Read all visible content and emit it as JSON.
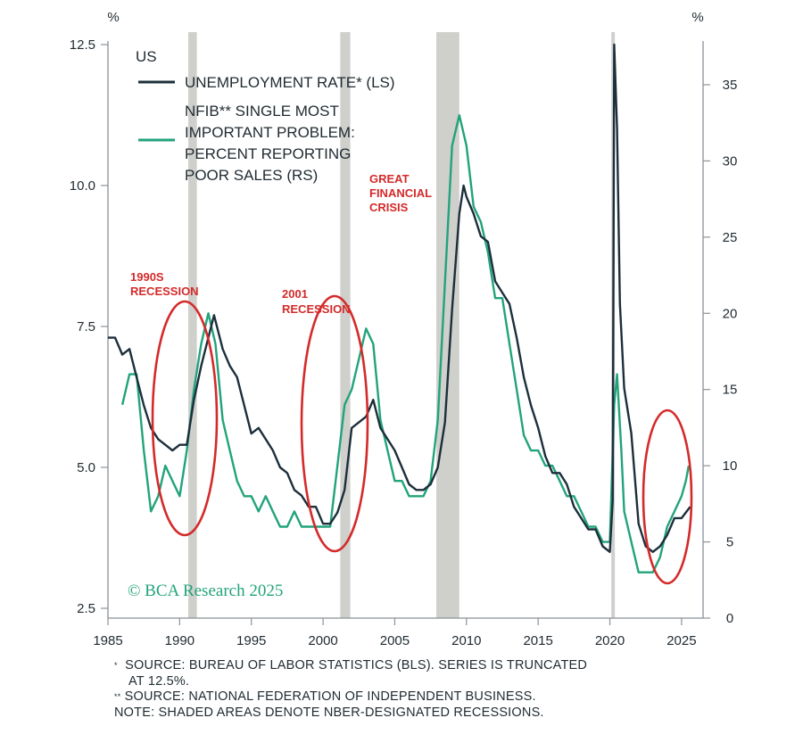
{
  "chart_data": {
    "type": "line",
    "region_label": "US",
    "left_unit": "%",
    "right_unit": "%",
    "xlim": [
      1985,
      2026.5
    ],
    "x_ticks": [
      1985,
      1990,
      1995,
      2000,
      2005,
      2010,
      2015,
      2020,
      2025
    ],
    "y_left": {
      "lim": [
        2.5,
        12.5
      ],
      "ticks": [
        "2.5",
        "5.0",
        "7.5",
        "10.0",
        "12.5"
      ]
    },
    "y_right": {
      "lim": [
        0,
        35
      ],
      "ticks": [
        "0",
        "5",
        "10",
        "15",
        "20",
        "25",
        "30",
        "35"
      ]
    },
    "series": [
      {
        "name": "UNEMPLOYMENT RATE* (LS)",
        "axis": "left",
        "color": "#1c2f3b",
        "points": [
          [
            1985.0,
            7.3
          ],
          [
            1985.5,
            7.3
          ],
          [
            1986.0,
            7.0
          ],
          [
            1986.5,
            7.1
          ],
          [
            1987.0,
            6.6
          ],
          [
            1987.5,
            6.1
          ],
          [
            1988.0,
            5.7
          ],
          [
            1988.5,
            5.5
          ],
          [
            1989.0,
            5.4
          ],
          [
            1989.5,
            5.3
          ],
          [
            1990.0,
            5.4
          ],
          [
            1990.5,
            5.4
          ],
          [
            1991.0,
            6.2
          ],
          [
            1991.5,
            6.8
          ],
          [
            1992.0,
            7.3
          ],
          [
            1992.4,
            7.7
          ],
          [
            1993.0,
            7.1
          ],
          [
            1993.5,
            6.8
          ],
          [
            1994.0,
            6.6
          ],
          [
            1994.5,
            6.1
          ],
          [
            1995.0,
            5.6
          ],
          [
            1995.5,
            5.7
          ],
          [
            1996.0,
            5.5
          ],
          [
            1996.5,
            5.3
          ],
          [
            1997.0,
            5.0
          ],
          [
            1997.5,
            4.9
          ],
          [
            1998.0,
            4.6
          ],
          [
            1998.5,
            4.5
          ],
          [
            1999.0,
            4.3
          ],
          [
            1999.5,
            4.3
          ],
          [
            2000.0,
            4.0
          ],
          [
            2000.5,
            4.0
          ],
          [
            2001.0,
            4.2
          ],
          [
            2001.5,
            4.6
          ],
          [
            2002.0,
            5.7
          ],
          [
            2002.5,
            5.8
          ],
          [
            2003.0,
            5.9
          ],
          [
            2003.5,
            6.2
          ],
          [
            2004.0,
            5.7
          ],
          [
            2004.5,
            5.5
          ],
          [
            2005.0,
            5.3
          ],
          [
            2005.5,
            5.0
          ],
          [
            2006.0,
            4.7
          ],
          [
            2006.5,
            4.6
          ],
          [
            2007.0,
            4.6
          ],
          [
            2007.5,
            4.7
          ],
          [
            2008.0,
            5.0
          ],
          [
            2008.5,
            5.8
          ],
          [
            2009.0,
            7.8
          ],
          [
            2009.5,
            9.5
          ],
          [
            2009.8,
            10.0
          ],
          [
            2010.0,
            9.8
          ],
          [
            2010.5,
            9.5
          ],
          [
            2011.0,
            9.1
          ],
          [
            2011.5,
            9.0
          ],
          [
            2012.0,
            8.3
          ],
          [
            2012.5,
            8.1
          ],
          [
            2013.0,
            7.9
          ],
          [
            2013.5,
            7.3
          ],
          [
            2014.0,
            6.6
          ],
          [
            2014.5,
            6.1
          ],
          [
            2015.0,
            5.7
          ],
          [
            2015.5,
            5.2
          ],
          [
            2016.0,
            4.9
          ],
          [
            2016.5,
            4.9
          ],
          [
            2017.0,
            4.7
          ],
          [
            2017.5,
            4.3
          ],
          [
            2018.0,
            4.1
          ],
          [
            2018.5,
            3.9
          ],
          [
            2019.0,
            3.9
          ],
          [
            2019.5,
            3.6
          ],
          [
            2020.0,
            3.5
          ],
          [
            2020.2,
            4.4
          ],
          [
            2020.3,
            12.5
          ],
          [
            2020.5,
            11.0
          ],
          [
            2020.7,
            7.9
          ],
          [
            2021.0,
            6.4
          ],
          [
            2021.5,
            5.6
          ],
          [
            2022.0,
            4.0
          ],
          [
            2022.5,
            3.6
          ],
          [
            2023.0,
            3.5
          ],
          [
            2023.5,
            3.6
          ],
          [
            2024.0,
            3.8
          ],
          [
            2024.5,
            4.1
          ],
          [
            2025.0,
            4.1
          ],
          [
            2025.3,
            4.2
          ],
          [
            2025.6,
            4.3
          ]
        ]
      },
      {
        "name": "NFIB** SINGLE MOST IMPORTANT PROBLEM: PERCENT REPORTING POOR SALES (RS)",
        "axis": "right",
        "color": "#22a37b",
        "points": [
          [
            1986.0,
            14
          ],
          [
            1986.5,
            16
          ],
          [
            1987.0,
            16
          ],
          [
            1987.5,
            11
          ],
          [
            1988.0,
            7
          ],
          [
            1988.5,
            8
          ],
          [
            1989.0,
            10
          ],
          [
            1989.5,
            9
          ],
          [
            1990.0,
            8
          ],
          [
            1990.5,
            11
          ],
          [
            1991.0,
            15
          ],
          [
            1991.5,
            18
          ],
          [
            1992.0,
            20
          ],
          [
            1992.5,
            18
          ],
          [
            1993.0,
            13
          ],
          [
            1993.5,
            11
          ],
          [
            1994.0,
            9
          ],
          [
            1994.5,
            8
          ],
          [
            1995.0,
            8
          ],
          [
            1995.5,
            7
          ],
          [
            1996.0,
            8
          ],
          [
            1996.5,
            7
          ],
          [
            1997.0,
            6
          ],
          [
            1997.5,
            6
          ],
          [
            1998.0,
            7
          ],
          [
            1998.5,
            6
          ],
          [
            1999.0,
            6
          ],
          [
            1999.5,
            6
          ],
          [
            2000.0,
            6
          ],
          [
            2000.5,
            6
          ],
          [
            2001.0,
            10
          ],
          [
            2001.5,
            14
          ],
          [
            2002.0,
            15
          ],
          [
            2002.5,
            17
          ],
          [
            2003.0,
            19
          ],
          [
            2003.5,
            18
          ],
          [
            2004.0,
            13
          ],
          [
            2004.5,
            11
          ],
          [
            2005.0,
            9
          ],
          [
            2005.5,
            9
          ],
          [
            2006.0,
            8
          ],
          [
            2006.5,
            8
          ],
          [
            2007.0,
            8
          ],
          [
            2007.5,
            9
          ],
          [
            2008.0,
            13
          ],
          [
            2008.5,
            22
          ],
          [
            2009.0,
            31
          ],
          [
            2009.5,
            33
          ],
          [
            2010.0,
            31
          ],
          [
            2010.5,
            27
          ],
          [
            2011.0,
            26
          ],
          [
            2011.5,
            24
          ],
          [
            2012.0,
            21
          ],
          [
            2012.5,
            21
          ],
          [
            2013.0,
            18
          ],
          [
            2013.5,
            15
          ],
          [
            2014.0,
            12
          ],
          [
            2014.5,
            11
          ],
          [
            2015.0,
            11
          ],
          [
            2015.5,
            10
          ],
          [
            2016.0,
            10
          ],
          [
            2016.5,
            9
          ],
          [
            2017.0,
            8
          ],
          [
            2017.5,
            8
          ],
          [
            2018.0,
            7
          ],
          [
            2018.5,
            6
          ],
          [
            2019.0,
            6
          ],
          [
            2019.5,
            5
          ],
          [
            2020.0,
            5
          ],
          [
            2020.3,
            14
          ],
          [
            2020.5,
            16
          ],
          [
            2020.8,
            11
          ],
          [
            2021.0,
            7
          ],
          [
            2021.5,
            5
          ],
          [
            2022.0,
            3
          ],
          [
            2022.5,
            3
          ],
          [
            2023.0,
            3
          ],
          [
            2023.5,
            4
          ],
          [
            2024.0,
            6
          ],
          [
            2024.5,
            7
          ],
          [
            2025.0,
            8
          ],
          [
            2025.3,
            9
          ],
          [
            2025.5,
            10
          ]
        ]
      }
    ],
    "recessions": [
      [
        1990.6,
        1991.2
      ],
      [
        2001.2,
        2001.9
      ],
      [
        2007.9,
        2009.5
      ],
      [
        2020.1,
        2020.35
      ]
    ],
    "annotations": [
      {
        "lines": [
          "1990S",
          "RECESSION"
        ]
      },
      {
        "lines": [
          "2001",
          "RECESSION"
        ]
      },
      {
        "lines": [
          "GREAT",
          "FINANCIAL",
          "CRISIS"
        ]
      }
    ],
    "highlight_color": "#d42a2a",
    "recession_color": "#cfcfcc",
    "watermark": "© BCA Research 2025"
  },
  "footnotes": {
    "line1": "SOURCE: BUREAU OF LABOR STATISTICS (BLS). SERIES IS TRUNCATED",
    "line1_mark": "*",
    "line2": "AT 12.5%.",
    "line3": "SOURCE: NATIONAL FEDERATION OF INDEPENDENT BUSINESS.",
    "line3_mark": "**",
    "line4": "NOTE: SHADED AREAS DENOTE NBER-DESIGNATED RECESSIONS."
  }
}
